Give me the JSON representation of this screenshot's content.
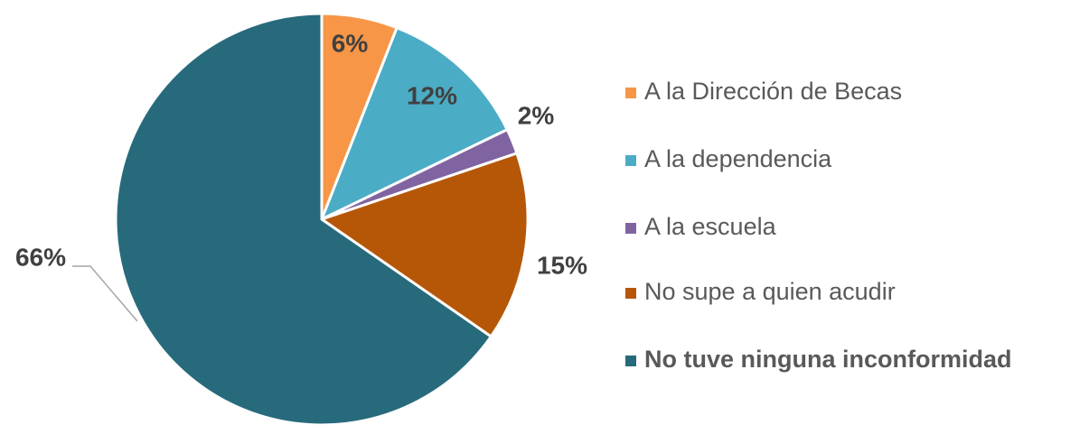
{
  "chart_data": {
    "type": "pie",
    "categories": [
      "A la Dirección de Becas",
      "A la dependencia",
      "A la escuela",
      "No supe a quien acudir",
      "No tuve ninguna inconformidad"
    ],
    "values": [
      6,
      12,
      2,
      15,
      66
    ],
    "value_labels": [
      "6%",
      "12%",
      "2%",
      "15%",
      "66%"
    ],
    "colors": [
      "#f79646",
      "#4bacc6",
      "#8064a2",
      "#b65708",
      "#276a7c"
    ],
    "legend": "right"
  }
}
